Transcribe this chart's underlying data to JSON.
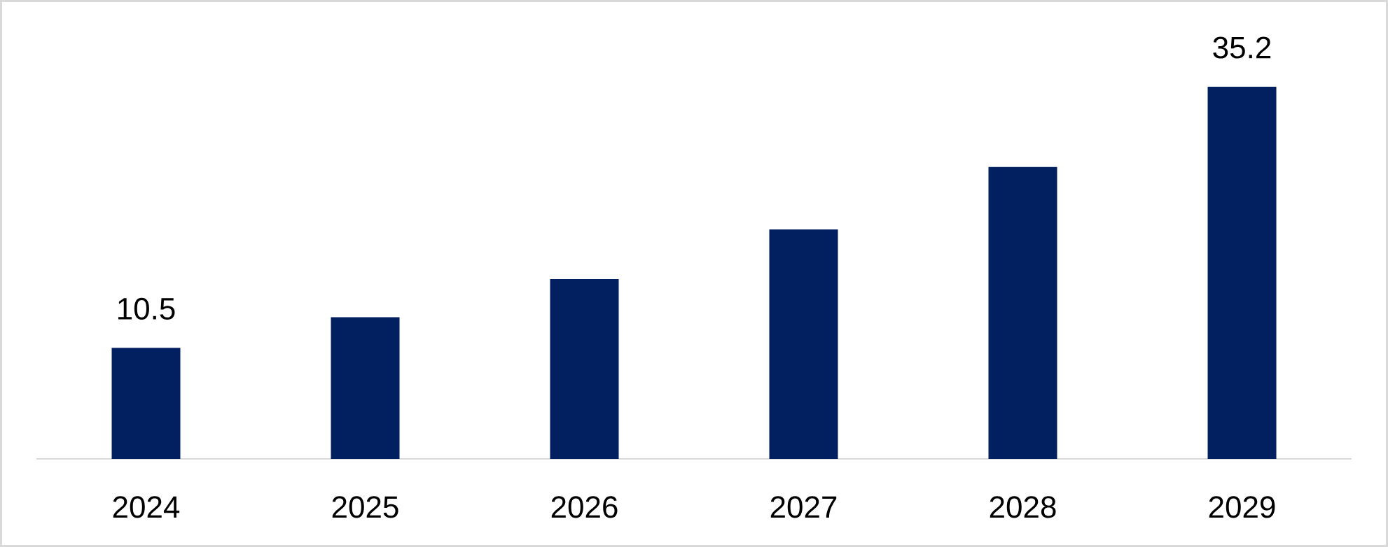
{
  "chart_data": {
    "type": "bar",
    "categories": [
      "2024",
      "2025",
      "2026",
      "2027",
      "2028",
      "2029"
    ],
    "values": [
      10.5,
      13.4,
      17.0,
      21.7,
      27.6,
      35.2
    ],
    "color": "#022060",
    "value_labels": [
      "10.5",
      null,
      null,
      null,
      null,
      "35.2"
    ]
  }
}
